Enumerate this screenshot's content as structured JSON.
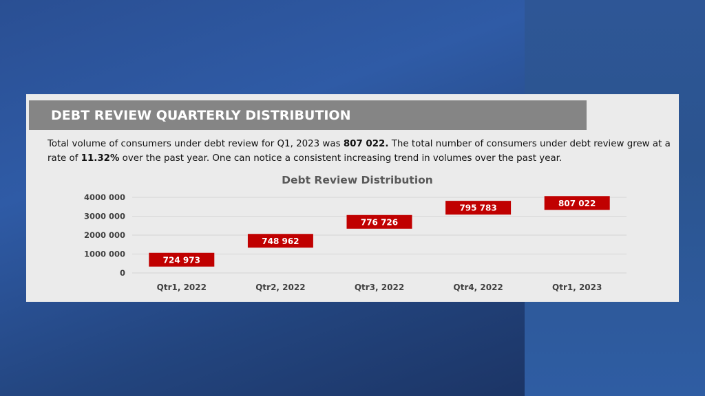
{
  "header": {
    "title": "DEBT REVIEW QUARTERLY DISTRIBUTION"
  },
  "description": {
    "part1": "Total volume of consumers under debt review for Q1, 2023 was ",
    "value": "807 022.",
    "part2": " The total number of consumers under debt review grew at a rate of ",
    "rate": "11.32%",
    "part3": " over the past year. One can notice a consistent increasing trend in volumes over the past year."
  },
  "colors": {
    "bar": "#c00000",
    "title_bar": "#858585",
    "panel": "#ebebeb"
  },
  "chart_data": {
    "type": "bar",
    "title": "Debt Review Distribution",
    "categories": [
      "Qtr1, 2022",
      "Qtr2, 2022",
      "Qtr3, 2022",
      "Qtr4, 2022",
      "Qtr1, 2023"
    ],
    "series": [
      {
        "values": [
          724973,
          748962,
          776726,
          795783,
          807022
        ],
        "labels": [
          "724 973",
          "748 962",
          "776 726",
          "795 783",
          "807 022"
        ],
        "display_level": [
          700000,
          1700000,
          2700000,
          3450000,
          3700000
        ]
      }
    ],
    "yticks": [
      "0",
      "1000 000",
      "2000 000",
      "3000 000",
      "4000 000"
    ],
    "ylim": [
      0,
      4000000
    ],
    "grid": true,
    "legend": "none",
    "xlabel": "",
    "ylabel": ""
  }
}
